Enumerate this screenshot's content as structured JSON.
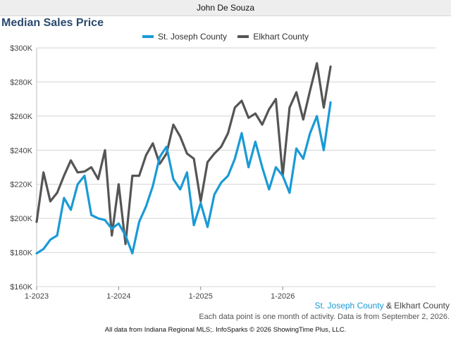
{
  "header": {
    "user_name": "John De Souza"
  },
  "chart_data": {
    "type": "line",
    "title": "Median Sales Price",
    "x_start": "2023-01",
    "x_tick_labels": [
      "1-2023",
      "1-2024",
      "1-2025",
      "1-2026"
    ],
    "y_ticks": [
      160000,
      180000,
      200000,
      220000,
      240000,
      260000,
      280000,
      300000
    ],
    "y_tick_labels": [
      "$160K",
      "$180K",
      "$200K",
      "$220K",
      "$240K",
      "$260K",
      "$280K",
      "$300K"
    ],
    "ylim": [
      160000,
      300000
    ],
    "grid": true,
    "legend_position": "top",
    "series": [
      {
        "name": "St. Joseph County",
        "color": "#1a9ad6",
        "values": [
          179500,
          182000,
          187500,
          190000,
          212000,
          205000,
          220000,
          225000,
          202000,
          200000,
          199000,
          194000,
          197000,
          190000,
          179500,
          198000,
          207000,
          219000,
          236000,
          242000,
          223000,
          217000,
          227000,
          196000,
          209000,
          195000,
          214000,
          221000,
          225000,
          235000,
          250000,
          230000,
          245000,
          230000,
          217000,
          230000,
          225000,
          215000,
          241000,
          235000,
          250000,
          260000,
          240000,
          268000
        ]
      },
      {
        "name": "Elkhart County",
        "color": "#555555",
        "values": [
          198000,
          227000,
          210000,
          215000,
          225000,
          234000,
          227000,
          227500,
          230000,
          223000,
          240000,
          190000,
          220000,
          185000,
          225000,
          225000,
          237000,
          244000,
          232000,
          238000,
          255000,
          248000,
          238000,
          235000,
          210000,
          233000,
          238000,
          242000,
          250000,
          265000,
          269000,
          259000,
          261500,
          255000,
          264000,
          270000,
          225000,
          265000,
          274000,
          258000,
          275000,
          291000,
          265000,
          289000
        ]
      }
    ]
  },
  "captions": {
    "series_a": "St. Joseph County",
    "joiner": "&",
    "series_b": "Elkhart County",
    "note": "Each data point is one month of activity. Data is from September 2, 2026.",
    "footer": "All data from Indiana Regional MLS;. InfoSparks © 2026 ShowingTime Plus, LLC."
  }
}
